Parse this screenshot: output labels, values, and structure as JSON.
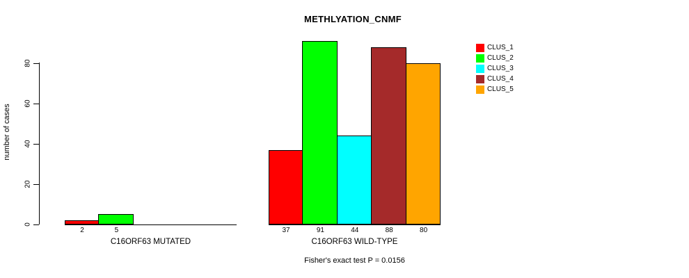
{
  "chart_data": {
    "type": "bar",
    "title": "METHLYATION_CNMF",
    "ylabel": "number of cases",
    "xlabel": "",
    "y_ticks": [
      0,
      20,
      40,
      60,
      80
    ],
    "ylim": [
      0,
      91
    ],
    "grid": false,
    "legend_position": "top-right",
    "categories": [
      "C16ORF63 MUTATED",
      "C16ORF63 WILD-TYPE"
    ],
    "series": [
      {
        "name": "CLUS_1",
        "color": "#FF0000",
        "values": [
          2,
          37
        ]
      },
      {
        "name": "CLUS_2",
        "color": "#00FF00",
        "values": [
          5,
          91
        ]
      },
      {
        "name": "CLUS_3",
        "color": "#00FFFF",
        "values": [
          0,
          44
        ]
      },
      {
        "name": "CLUS_4",
        "color": "#A52A2A",
        "values": [
          0,
          88
        ]
      },
      {
        "name": "CLUS_5",
        "color": "#FFA500",
        "values": [
          0,
          80
        ]
      }
    ],
    "bar_value_labels": {
      "C16ORF63 MUTATED": [
        2,
        5
      ],
      "C16ORF63 WILD-TYPE": [
        37,
        91,
        44,
        88,
        80
      ]
    },
    "annotation": "Fisher's exact test P = 0.0156",
    "axis_color": "#000000",
    "text_color": "#000000",
    "background": "#FFFFFF"
  }
}
